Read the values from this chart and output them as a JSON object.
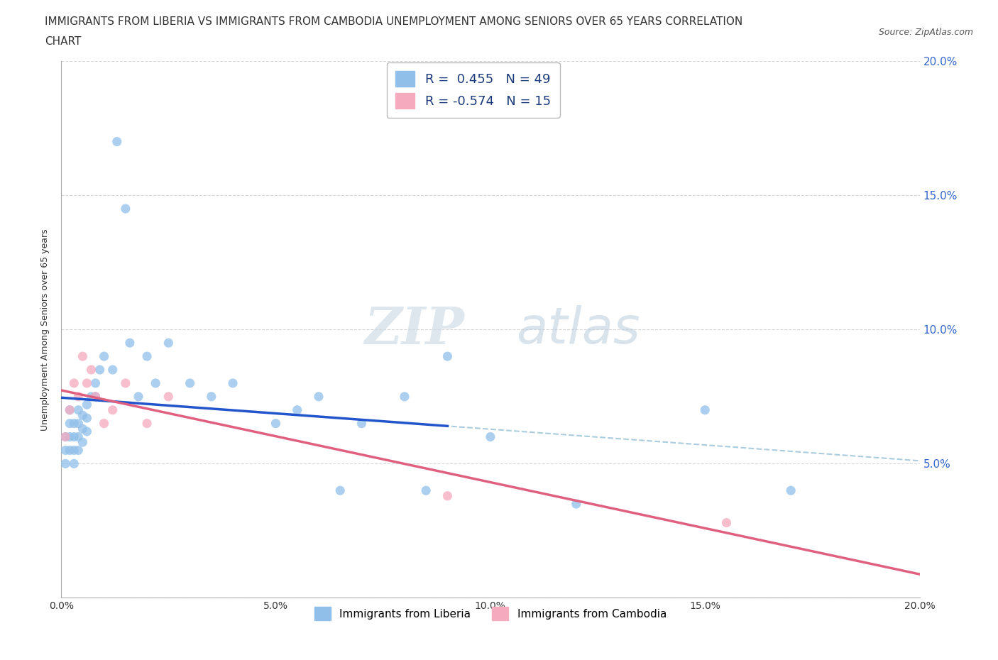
{
  "title_line1": "IMMIGRANTS FROM LIBERIA VS IMMIGRANTS FROM CAMBODIA UNEMPLOYMENT AMONG SENIORS OVER 65 YEARS CORRELATION",
  "title_line2": "CHART",
  "source": "Source: ZipAtlas.com",
  "ylabel": "Unemployment Among Seniors over 65 years",
  "xlabel_liberia": "Immigrants from Liberia",
  "xlabel_cambodia": "Immigrants from Cambodia",
  "color_liberia": "#90C0EA",
  "color_cambodia": "#F5AABE",
  "line_color_liberia": "#2255CC",
  "line_color_cambodia": "#E06080",
  "dashed_line_color": "#AACCDD",
  "R_liberia": 0.455,
  "N_liberia": 49,
  "R_cambodia": -0.574,
  "N_cambodia": 15,
  "xmin": 0.0,
  "xmax": 0.2,
  "ymin": 0.0,
  "ymax": 0.2,
  "watermark_zip": "ZIP",
  "watermark_atlas": "atlas",
  "right_tick_color": "#3366CC",
  "liberia_x": [
    0.001,
    0.001,
    0.001,
    0.002,
    0.002,
    0.002,
    0.002,
    0.003,
    0.003,
    0.003,
    0.003,
    0.004,
    0.004,
    0.004,
    0.004,
    0.005,
    0.005,
    0.005,
    0.006,
    0.006,
    0.006,
    0.007,
    0.008,
    0.008,
    0.009,
    0.01,
    0.012,
    0.013,
    0.015,
    0.016,
    0.018,
    0.02,
    0.022,
    0.025,
    0.03,
    0.035,
    0.04,
    0.05,
    0.055,
    0.06,
    0.065,
    0.07,
    0.08,
    0.085,
    0.09,
    0.1,
    0.12,
    0.15,
    0.17
  ],
  "liberia_y": [
    0.06,
    0.055,
    0.05,
    0.07,
    0.065,
    0.06,
    0.055,
    0.065,
    0.06,
    0.055,
    0.05,
    0.07,
    0.065,
    0.06,
    0.055,
    0.068,
    0.063,
    0.058,
    0.072,
    0.067,
    0.062,
    0.075,
    0.08,
    0.075,
    0.085,
    0.09,
    0.085,
    0.17,
    0.145,
    0.095,
    0.075,
    0.09,
    0.08,
    0.095,
    0.08,
    0.075,
    0.08,
    0.065,
    0.07,
    0.075,
    0.04,
    0.065,
    0.075,
    0.04,
    0.09,
    0.06,
    0.035,
    0.07,
    0.04
  ],
  "cambodia_x": [
    0.001,
    0.002,
    0.003,
    0.004,
    0.005,
    0.006,
    0.007,
    0.008,
    0.01,
    0.012,
    0.015,
    0.02,
    0.025,
    0.09,
    0.155
  ],
  "cambodia_y": [
    0.06,
    0.07,
    0.08,
    0.075,
    0.09,
    0.08,
    0.085,
    0.075,
    0.065,
    0.07,
    0.08,
    0.065,
    0.075,
    0.038,
    0.028
  ]
}
